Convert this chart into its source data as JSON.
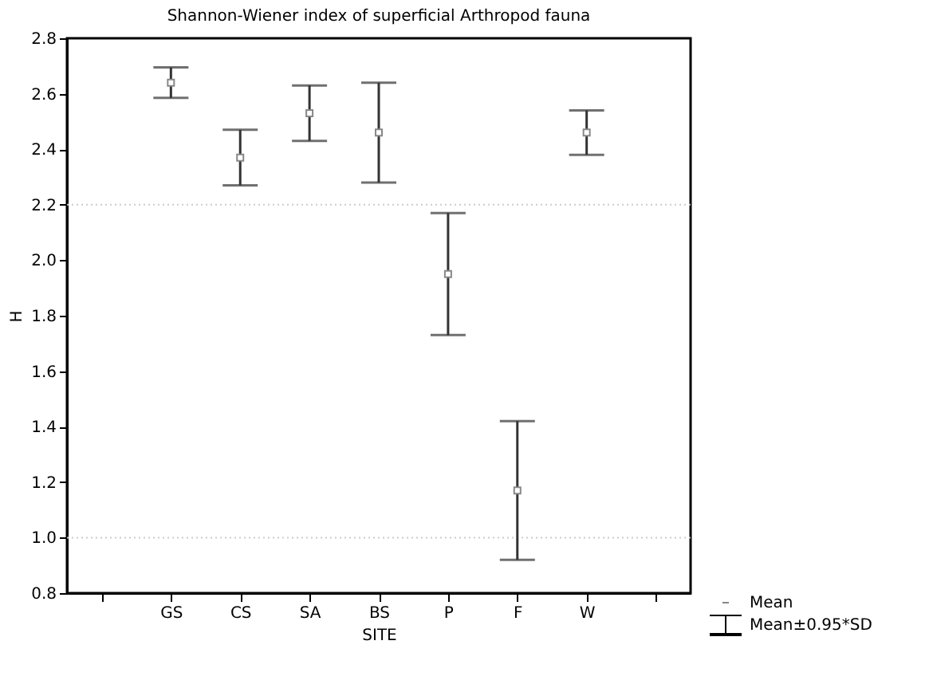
{
  "chart_data": {
    "type": "scatter",
    "title": "Shannon-Wiener index of superficial Arthropod fauna",
    "xlabel": "SITE",
    "ylabel": "H",
    "categories": [
      null,
      "GS",
      "CS",
      "SA",
      "BS",
      "P",
      "F",
      "W",
      null
    ],
    "series": [
      {
        "name": "Mean",
        "color": "#ffffff",
        "values": [
          null,
          2.64,
          2.37,
          2.53,
          2.46,
          1.95,
          1.17,
          2.46,
          null
        ],
        "errors": [
          null,
          0.055,
          0.1,
          0.1,
          0.18,
          0.22,
          0.25,
          0.08,
          null
        ]
      }
    ],
    "marker": "square",
    "ylim": [
      0.8,
      2.8
    ],
    "yticks": [
      0.8,
      {
        "value": 1,
        "label": "1.0"
      },
      1.2,
      1.4,
      1.6,
      1.8,
      {
        "value": 2,
        "label": "2.0"
      },
      2.2,
      2.4,
      2.6,
      2.8
    ],
    "ref_lines": [
      {
        "axis": "y",
        "value": 2.2,
        "color": "#cccccc",
        "line_style": "dotted"
      },
      {
        "axis": "y",
        "value": 1.0,
        "color": "#cccccc",
        "line_style": "dotted"
      }
    ],
    "annotations": [
      "Mean±0.95*SD"
    ],
    "grid": false,
    "legend": "bottom right"
  }
}
